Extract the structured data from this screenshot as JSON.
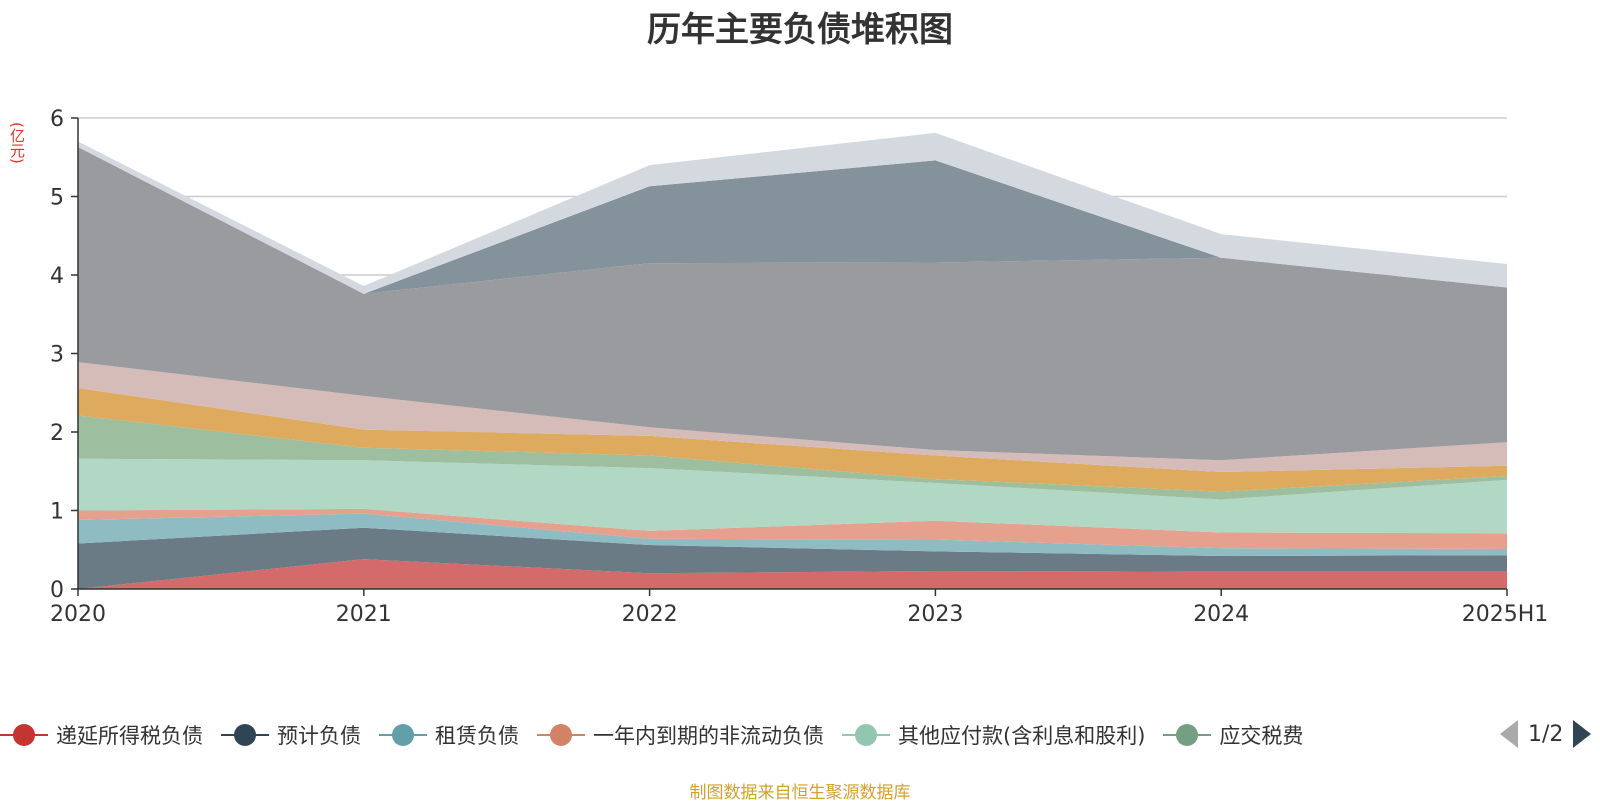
{
  "chart_data": {
    "type": "area",
    "stacked": true,
    "title": "历年主要负债堆积图",
    "y_unit": "(亿元)",
    "categories": [
      "2020",
      "2021",
      "2022",
      "2023",
      "2024",
      "2025H1"
    ],
    "ylim": [
      0,
      6
    ],
    "yticks": [
      "0",
      "1",
      "2",
      "3",
      "4",
      "5",
      "6"
    ],
    "grid": true,
    "series": [
      {
        "name": "递延所得税负债",
        "color": "#d46a6a",
        "values": [
          0.0,
          0.38,
          0.2,
          0.23,
          0.22,
          0.22
        ]
      },
      {
        "name": "预计负债",
        "color": "#6b7b86",
        "values": [
          0.58,
          0.4,
          0.36,
          0.25,
          0.2,
          0.21
        ]
      },
      {
        "name": "租赁负债",
        "color": "#8fbcc2",
        "values": [
          0.3,
          0.18,
          0.08,
          0.15,
          0.1,
          0.08
        ]
      },
      {
        "name": "一年内到期的非流动负债",
        "color": "#e5a08e",
        "values": [
          0.12,
          0.06,
          0.1,
          0.24,
          0.2,
          0.2
        ]
      },
      {
        "name": "其他应付款(含利息和股利)",
        "color": "#b1d8c5",
        "values": [
          0.66,
          0.62,
          0.8,
          0.48,
          0.42,
          0.68
        ]
      },
      {
        "name": "应交税费",
        "color": "#9dbfa0",
        "values": [
          0.55,
          0.16,
          0.16,
          0.05,
          0.1,
          0.05
        ]
      },
      {
        "name": "",
        "color": "#ddaa5e",
        "values": [
          0.35,
          0.23,
          0.25,
          0.3,
          0.25,
          0.13
        ]
      },
      {
        "name": "",
        "color": "#d5bcb8",
        "values": [
          0.33,
          0.43,
          0.11,
          0.07,
          0.15,
          0.3
        ]
      },
      {
        "name": "",
        "color": "#9a9b9f",
        "values": [
          2.74,
          1.3,
          2.09,
          2.39,
          2.58,
          1.97
        ]
      },
      {
        "name": "",
        "color": "#84939b",
        "values": [
          0.0,
          0.0,
          0.98,
          1.3,
          0.0,
          0.0
        ]
      },
      {
        "name": "",
        "color": "#d4d9df",
        "values": [
          0.07,
          0.1,
          0.27,
          0.35,
          0.3,
          0.3
        ]
      }
    ]
  },
  "pager": {
    "text": "1/2"
  },
  "source_note": "制图数据来自恒生聚源数据库",
  "legend_markers": {
    "series_colors": [
      "#c23531",
      "#2f4554",
      "#61a0a8",
      "#d48265",
      "#91c7ae",
      "#749f83"
    ]
  }
}
